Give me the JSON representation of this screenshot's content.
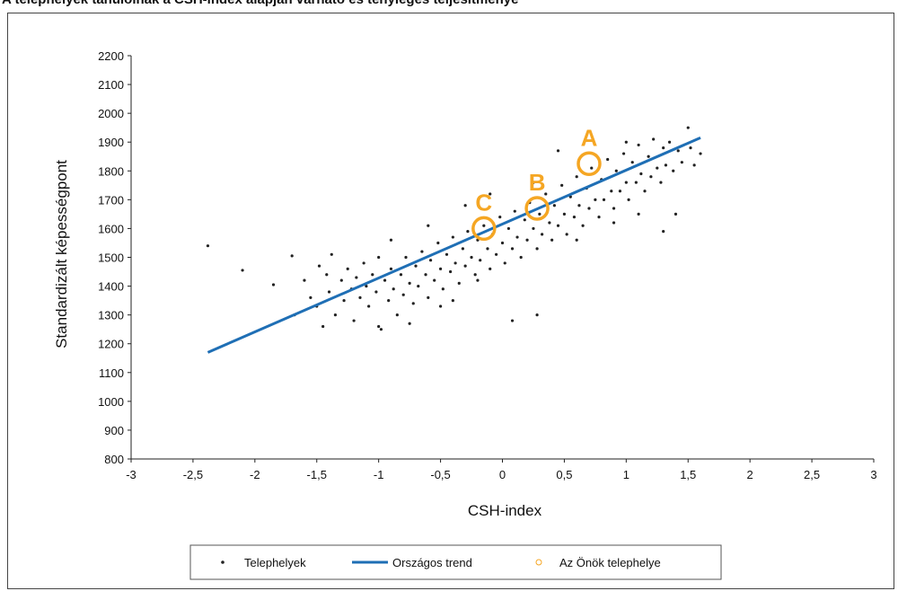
{
  "chart_data": {
    "type": "scatter",
    "title": "A telephelyek tanulóinak a CSH-index alapján várható és tényleges teljesítménye",
    "xlabel": "CSH-index",
    "ylabel": "Standardizált képességpont",
    "xlim": [
      -3,
      3
    ],
    "ylim": [
      800,
      2200
    ],
    "x_ticks": [
      -3,
      -2.5,
      -2,
      -1.5,
      -1,
      -0.5,
      0,
      0.5,
      1,
      1.5,
      2,
      2.5,
      3
    ],
    "x_tick_labels": [
      "-3",
      "-2,5",
      "-2",
      "-1,5",
      "-1",
      "-0,5",
      "0",
      "0,5",
      "1",
      "1,5",
      "2",
      "2,5",
      "3"
    ],
    "y_ticks": [
      800,
      900,
      1000,
      1100,
      1200,
      1300,
      1400,
      1500,
      1600,
      1700,
      1800,
      1900,
      2000,
      2100,
      2200
    ],
    "y_tick_labels": [
      "800",
      "900",
      "1000",
      "1100",
      "1200",
      "1300",
      "1400",
      "1500",
      "1600",
      "1700",
      "1800",
      "1900",
      "2000",
      "2100",
      "2200"
    ],
    "grid": false,
    "legend_position": "bottom",
    "colors": {
      "points": "#222222",
      "trend": "#1f6fb5",
      "highlight": "#f5a623"
    },
    "series": [
      {
        "name": "Telephelyek",
        "kind": "scatter",
        "points": [
          [
            -2.38,
            1540
          ],
          [
            -2.1,
            1455
          ],
          [
            -1.85,
            1405
          ],
          [
            -1.7,
            1505
          ],
          [
            -1.68,
            1300
          ],
          [
            -1.6,
            1420
          ],
          [
            -1.55,
            1360
          ],
          [
            -1.5,
            1330
          ],
          [
            -1.48,
            1470
          ],
          [
            -1.45,
            1260
          ],
          [
            -1.42,
            1440
          ],
          [
            -1.4,
            1380
          ],
          [
            -1.38,
            1510
          ],
          [
            -1.35,
            1300
          ],
          [
            -1.3,
            1420
          ],
          [
            -1.28,
            1350
          ],
          [
            -1.25,
            1460
          ],
          [
            -1.22,
            1390
          ],
          [
            -1.2,
            1280
          ],
          [
            -1.18,
            1430
          ],
          [
            -1.15,
            1360
          ],
          [
            -1.12,
            1480
          ],
          [
            -1.1,
            1400
          ],
          [
            -1.08,
            1330
          ],
          [
            -1.05,
            1440
          ],
          [
            -1.02,
            1380
          ],
          [
            -1.0,
            1500
          ],
          [
            -0.98,
            1250
          ],
          [
            -0.95,
            1420
          ],
          [
            -0.92,
            1350
          ],
          [
            -0.9,
            1460
          ],
          [
            -0.88,
            1390
          ],
          [
            -0.85,
            1300
          ],
          [
            -0.82,
            1440
          ],
          [
            -0.8,
            1370
          ],
          [
            -0.78,
            1500
          ],
          [
            -0.75,
            1410
          ],
          [
            -0.72,
            1340
          ],
          [
            -0.7,
            1470
          ],
          [
            -0.68,
            1400
          ],
          [
            -0.65,
            1520
          ],
          [
            -0.62,
            1440
          ],
          [
            -0.6,
            1360
          ],
          [
            -0.58,
            1490
          ],
          [
            -0.55,
            1420
          ],
          [
            -0.52,
            1550
          ],
          [
            -0.5,
            1460
          ],
          [
            -0.48,
            1390
          ],
          [
            -0.45,
            1510
          ],
          [
            -0.42,
            1450
          ],
          [
            -0.4,
            1570
          ],
          [
            -0.38,
            1480
          ],
          [
            -0.35,
            1410
          ],
          [
            -0.32,
            1530
          ],
          [
            -0.3,
            1470
          ],
          [
            -0.28,
            1590
          ],
          [
            -0.25,
            1500
          ],
          [
            -0.22,
            1440
          ],
          [
            -0.2,
            1560
          ],
          [
            -0.18,
            1490
          ],
          [
            -0.15,
            1610
          ],
          [
            -0.12,
            1530
          ],
          [
            -0.1,
            1460
          ],
          [
            -0.08,
            1580
          ],
          [
            -0.05,
            1510
          ],
          [
            -0.02,
            1640
          ],
          [
            0.0,
            1550
          ],
          [
            0.02,
            1480
          ],
          [
            0.05,
            1600
          ],
          [
            0.08,
            1530
          ],
          [
            0.1,
            1660
          ],
          [
            0.12,
            1570
          ],
          [
            0.15,
            1500
          ],
          [
            0.18,
            1630
          ],
          [
            0.2,
            1560
          ],
          [
            0.22,
            1690
          ],
          [
            0.25,
            1600
          ],
          [
            0.28,
            1530
          ],
          [
            0.3,
            1650
          ],
          [
            0.32,
            1580
          ],
          [
            0.35,
            1720
          ],
          [
            0.38,
            1620
          ],
          [
            0.4,
            1560
          ],
          [
            0.42,
            1680
          ],
          [
            0.45,
            1610
          ],
          [
            0.48,
            1750
          ],
          [
            0.5,
            1650
          ],
          [
            0.52,
            1580
          ],
          [
            0.55,
            1710
          ],
          [
            0.58,
            1640
          ],
          [
            0.6,
            1780
          ],
          [
            0.62,
            1680
          ],
          [
            0.65,
            1610
          ],
          [
            0.68,
            1740
          ],
          [
            0.7,
            1670
          ],
          [
            0.72,
            1810
          ],
          [
            0.75,
            1700
          ],
          [
            0.78,
            1640
          ],
          [
            0.8,
            1770
          ],
          [
            0.82,
            1700
          ],
          [
            0.85,
            1840
          ],
          [
            0.88,
            1730
          ],
          [
            0.9,
            1670
          ],
          [
            0.92,
            1800
          ],
          [
            0.95,
            1730
          ],
          [
            0.98,
            1860
          ],
          [
            1.0,
            1760
          ],
          [
            1.02,
            1700
          ],
          [
            1.05,
            1830
          ],
          [
            1.08,
            1760
          ],
          [
            1.1,
            1890
          ],
          [
            1.12,
            1790
          ],
          [
            1.15,
            1730
          ],
          [
            1.18,
            1850
          ],
          [
            1.2,
            1780
          ],
          [
            1.22,
            1910
          ],
          [
            1.25,
            1810
          ],
          [
            1.28,
            1760
          ],
          [
            1.3,
            1880
          ],
          [
            1.32,
            1820
          ],
          [
            1.35,
            1900
          ],
          [
            1.38,
            1800
          ],
          [
            1.4,
            1650
          ],
          [
            1.42,
            1870
          ],
          [
            1.45,
            1830
          ],
          [
            1.5,
            1950
          ],
          [
            1.52,
            1880
          ],
          [
            1.55,
            1820
          ],
          [
            1.6,
            1860
          ],
          [
            0.08,
            1280
          ],
          [
            0.28,
            1300
          ],
          [
            -0.75,
            1270
          ],
          [
            1.3,
            1590
          ],
          [
            -0.9,
            1560
          ],
          [
            -0.3,
            1680
          ],
          [
            0.45,
            1870
          ],
          [
            0.9,
            1620
          ],
          [
            -0.6,
            1610
          ],
          [
            1.1,
            1650
          ],
          [
            -1.0,
            1260
          ],
          [
            -0.5,
            1330
          ],
          [
            -0.2,
            1420
          ],
          [
            0.6,
            1560
          ],
          [
            1.0,
            1900
          ],
          [
            0.25,
            1760
          ],
          [
            -0.1,
            1720
          ],
          [
            -0.4,
            1350
          ]
        ]
      },
      {
        "name": "Országos trend",
        "kind": "line",
        "points": [
          [
            -2.38,
            1170
          ],
          [
            1.6,
            1915
          ]
        ]
      },
      {
        "name": "Az Önök telephelye",
        "kind": "marker",
        "points": []
      }
    ],
    "annotations": [
      {
        "label": "A",
        "x": 0.7,
        "y": 1825
      },
      {
        "label": "B",
        "x": 0.28,
        "y": 1670
      },
      {
        "label": "C",
        "x": -0.15,
        "y": 1600
      }
    ]
  }
}
